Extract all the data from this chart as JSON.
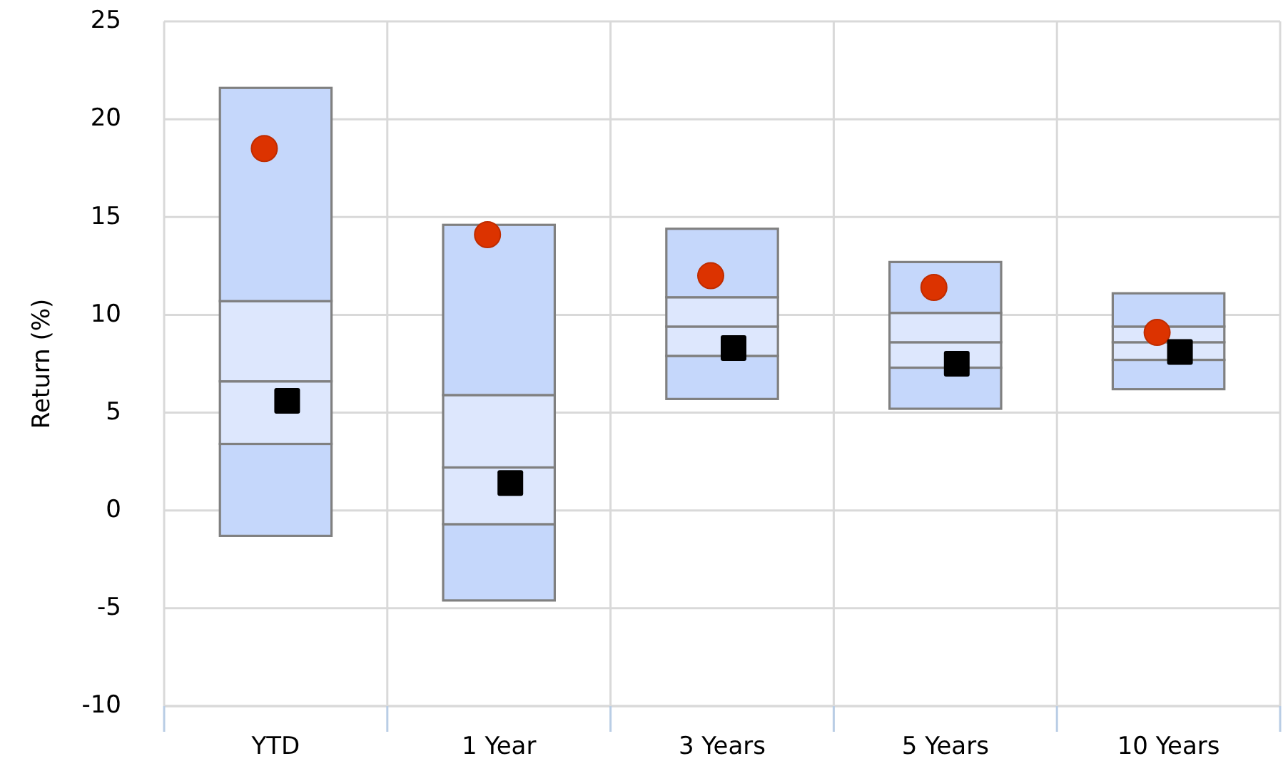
{
  "chart_data": {
    "type": "bar",
    "ylabel": "Return (%)",
    "categories": [
      "YTD",
      "1 Year",
      "3 Years",
      "5 Years",
      "10 Years"
    ],
    "series": [
      {
        "color": "#c5d7fb",
        "base": [
          -1.3,
          -4.6,
          5.7,
          5.2,
          6.2
        ],
        "values": [
          4.7,
          3.9,
          2.2,
          2.1,
          1.5
        ]
      },
      {
        "color": "#dde7fd",
        "base": [
          3.4,
          -0.7,
          7.9,
          7.3,
          7.7
        ],
        "values": [
          3.2,
          2.9,
          1.5,
          1.3,
          0.9
        ]
      },
      {
        "color": "#dde7fd",
        "base": [
          6.6,
          2.2,
          9.4,
          8.6,
          8.6
        ],
        "values": [
          4.1,
          3.7,
          1.5,
          1.5,
          0.8
        ]
      },
      {
        "color": "#c5d7fb",
        "base": [
          10.7,
          5.9,
          10.9,
          10.1,
          9.4
        ],
        "values": [
          10.9,
          8.7,
          3.5,
          2.6,
          1.7
        ]
      },
      {
        "type": "scatter",
        "color": "#dc3300",
        "marker": "circle",
        "x": [
          "YTD",
          "1 Year",
          "3 Years",
          "5 Years",
          "10 Years"
        ],
        "values": [
          18.5,
          14.1,
          12.0,
          11.4,
          9.1
        ]
      },
      {
        "type": "scatter",
        "color": "#000000",
        "marker": "square",
        "x": [
          "YTD",
          "1 Year",
          "3 Years",
          "5 Years",
          "10 Years"
        ],
        "values": [
          5.6,
          1.4,
          8.3,
          7.5,
          8.1
        ]
      }
    ],
    "ylim": [
      -10,
      25
    ],
    "yticks": [
      -10,
      -5,
      0,
      5,
      10,
      15,
      20,
      25
    ],
    "grid": true
  }
}
